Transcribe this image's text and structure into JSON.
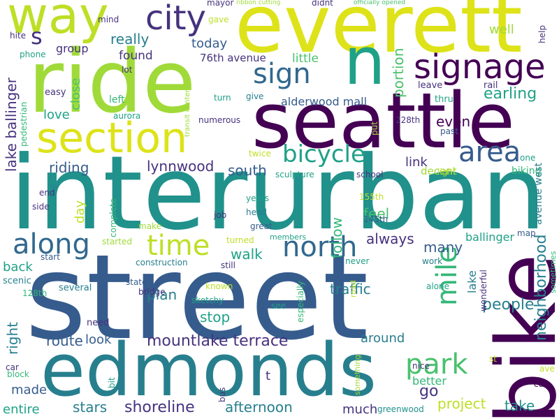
{
  "palette": {
    "dark_purple": "#440154",
    "indigo": "#46327e",
    "blue": "#365c8d",
    "steel": "#31688e",
    "teal": "#277f8e",
    "sea": "#21918c",
    "green_teal": "#1fa187",
    "green": "#35b779",
    "lime_green": "#4ac16d",
    "lime": "#a0da39",
    "yellow_green": "#bddf26",
    "yellow": "#dde318"
  },
  "words": [
    {
      "text": "street",
      "color": "#365c8d"
    },
    {
      "text": "interurban",
      "color": "#21918c"
    },
    {
      "text": "edmonds",
      "color": "#277f8e"
    },
    {
      "text": "seattle",
      "color": "#440154"
    },
    {
      "text": "ride",
      "color": "#a0da39"
    },
    {
      "text": "everett",
      "color": "#dde318"
    },
    {
      "text": "bike",
      "color": "#440154"
    },
    {
      "text": "n",
      "color": "#1fa187"
    },
    {
      "text": "way",
      "color": "#bddf26"
    },
    {
      "text": "section",
      "color": "#dde318"
    },
    {
      "text": "city",
      "color": "#46327e"
    },
    {
      "text": "signage",
      "color": "#440154"
    },
    {
      "text": "sign",
      "color": "#31688e"
    },
    {
      "text": "time",
      "color": "#bddf26"
    },
    {
      "text": "north",
      "color": "#31688e"
    },
    {
      "text": "along",
      "color": "#31688e"
    },
    {
      "text": "area",
      "color": "#365c8d"
    },
    {
      "text": "bicycle",
      "color": "#1fa187"
    },
    {
      "text": "park",
      "color": "#4ac16d"
    },
    {
      "text": "mile",
      "color": "#35b779"
    },
    {
      "text": "s",
      "color": "#46327e"
    },
    {
      "text": "mountlake terrace",
      "color": "#46327e"
    },
    {
      "text": "neighborhood",
      "color": "#277f8e"
    },
    {
      "text": "lake ballinger",
      "color": "#46327e"
    },
    {
      "text": "shoreline",
      "color": "#46327e"
    },
    {
      "text": "people",
      "color": "#277f8e"
    },
    {
      "text": "earling",
      "color": "#1fa187"
    },
    {
      "text": "portion",
      "color": "#4ac16d"
    },
    {
      "text": "lynnwood",
      "color": "#46327e"
    },
    {
      "text": "riding",
      "color": "#365c8d"
    },
    {
      "text": "south",
      "color": "#365c8d"
    },
    {
      "text": "walk",
      "color": "#1fa187"
    },
    {
      "text": "really",
      "color": "#277f8e"
    },
    {
      "text": "many",
      "color": "#365c8d"
    },
    {
      "text": "stop",
      "color": "#1fa187"
    },
    {
      "text": "plan",
      "color": "#277f8e"
    },
    {
      "text": "traffic",
      "color": "#277f8e"
    },
    {
      "text": "route",
      "color": "#365c8d"
    },
    {
      "text": "right",
      "color": "#277f8e"
    },
    {
      "text": "always",
      "color": "#46327e"
    },
    {
      "text": "follow",
      "color": "#35b779"
    },
    {
      "text": "feel",
      "color": "#4ac16d"
    },
    {
      "text": "even",
      "color": "#440154"
    },
    {
      "text": "link",
      "color": "#46327e"
    },
    {
      "text": "well",
      "color": "#a0da39"
    },
    {
      "text": "take",
      "color": "#21918c"
    },
    {
      "text": "project",
      "color": "#bddf26"
    },
    {
      "text": "stars",
      "color": "#277f8e"
    },
    {
      "text": "afternoon",
      "color": "#277f8e"
    },
    {
      "text": "go",
      "color": "#46327e"
    },
    {
      "text": "better",
      "color": "#35b779"
    },
    {
      "text": "around",
      "color": "#277f8e"
    },
    {
      "text": "much",
      "color": "#46327e"
    },
    {
      "text": "day",
      "color": "#bddf26"
    },
    {
      "text": "today",
      "color": "#365c8d"
    },
    {
      "text": "found",
      "color": "#46327e"
    },
    {
      "text": "group",
      "color": "#46327e"
    },
    {
      "text": "love",
      "color": "#1fa187"
    },
    {
      "text": "close",
      "color": "#4ac16d"
    },
    {
      "text": "little",
      "color": "#4ac16d"
    },
    {
      "text": "76th avenue",
      "color": "#46327e"
    },
    {
      "text": "alderwood mall",
      "color": "#365c8d"
    },
    {
      "text": "back",
      "color": "#1fa187"
    },
    {
      "text": "look",
      "color": "#365c8d"
    },
    {
      "text": "made",
      "color": "#365c8d"
    },
    {
      "text": "entire",
      "color": "#1fa187"
    },
    {
      "text": "ballinger",
      "color": "#1fa187"
    },
    {
      "text": "lake",
      "color": "#277f8e"
    },
    {
      "text": "decent",
      "color": "#a0da39"
    },
    {
      "text": "biking",
      "color": "#35b779"
    },
    {
      "text": "avenue west",
      "color": "#277f8e"
    },
    {
      "text": "mayor",
      "color": "#46327e"
    },
    {
      "text": "ribbon cutting",
      "color": "#a0da39"
    },
    {
      "text": "didnt",
      "color": "#46327e"
    },
    {
      "text": "officially opened",
      "color": "#4ac16d"
    },
    {
      "text": "gave",
      "color": "#bddf26"
    },
    {
      "text": "mind",
      "color": "#46327e"
    },
    {
      "text": "hite",
      "color": "#46327e"
    },
    {
      "text": "phone",
      "color": "#1fa187"
    },
    {
      "text": "lot",
      "color": "#46327e"
    },
    {
      "text": "easy",
      "color": "#46327e"
    },
    {
      "text": "left",
      "color": "#35b779"
    },
    {
      "text": "aurora",
      "color": "#1fa187"
    },
    {
      "text": "pedestrian",
      "color": "#35b779"
    },
    {
      "text": "transit center",
      "color": "#a0da39"
    },
    {
      "text": "turn",
      "color": "#1fa187"
    },
    {
      "text": "give",
      "color": "#277f8e"
    },
    {
      "text": "numerous",
      "color": "#46327e"
    },
    {
      "text": "twice",
      "color": "#bddf26"
    },
    {
      "text": "put",
      "color": "#a0da39"
    },
    {
      "text": "228th",
      "color": "#46327e"
    },
    {
      "text": "past",
      "color": "#365c8d"
    },
    {
      "text": "leave",
      "color": "#46327e"
    },
    {
      "text": "rail",
      "color": "#46327e"
    },
    {
      "text": "thru",
      "color": "#1fa187"
    },
    {
      "text": "help",
      "color": "#46327e"
    },
    {
      "text": "one",
      "color": "#1fa187"
    },
    {
      "text": "light",
      "color": "#bddf26"
    },
    {
      "text": "school",
      "color": "#46327e"
    },
    {
      "text": "sculpture",
      "color": "#1fa187"
    },
    {
      "text": "end",
      "color": "#46327e"
    },
    {
      "text": "il",
      "color": "#277f8e"
    },
    {
      "text": "side",
      "color": "#46327e"
    },
    {
      "text": "job",
      "color": "#46327e"
    },
    {
      "text": "years",
      "color": "#1fa187"
    },
    {
      "text": "head",
      "color": "#277f8e"
    },
    {
      "text": "great",
      "color": "#365c8d"
    },
    {
      "text": "members",
      "color": "#1fa187"
    },
    {
      "text": "complete",
      "color": "#35b779"
    },
    {
      "text": "make",
      "color": "#a0da39"
    },
    {
      "text": "155th",
      "color": "#bddf26"
    },
    {
      "text": "145th",
      "color": "#365c8d"
    },
    {
      "text": "started",
      "color": "#a0da39"
    },
    {
      "text": "turned",
      "color": "#bddf26"
    },
    {
      "text": "construction",
      "color": "#277f8e"
    },
    {
      "text": "start",
      "color": "#365c8d"
    },
    {
      "text": "still",
      "color": "#46327e"
    },
    {
      "text": "never",
      "color": "#1fa187"
    },
    {
      "text": "work",
      "color": "#277f8e"
    },
    {
      "text": "map",
      "color": "#365c8d"
    },
    {
      "text": "sometimes",
      "color": "#35b779"
    },
    {
      "text": "wonderful",
      "color": "#46327e"
    },
    {
      "text": "alone",
      "color": "#1fa187"
    },
    {
      "text": "scenic",
      "color": "#277f8e"
    },
    {
      "text": "several",
      "color": "#277f8e"
    },
    {
      "text": "state",
      "color": "#365c8d"
    },
    {
      "text": "known",
      "color": "#bddf26"
    },
    {
      "text": "especially",
      "color": "#35b779"
    },
    {
      "text": "road",
      "color": "#bddf26"
    },
    {
      "text": "128th",
      "color": "#35b779"
    },
    {
      "text": "bridge",
      "color": "#46327e"
    },
    {
      "text": "sketchy",
      "color": "#1fa187"
    },
    {
      "text": "see",
      "color": "#1fa187"
    },
    {
      "text": "need",
      "color": "#46327e"
    },
    {
      "text": "car",
      "color": "#46327e"
    },
    {
      "text": "block",
      "color": "#35b779"
    },
    {
      "text": "bit",
      "color": "#1fa187"
    },
    {
      "text": "bus",
      "color": "#46327e"
    },
    {
      "text": "t",
      "color": "#46327e"
    },
    {
      "text": "nice",
      "color": "#46327e"
    },
    {
      "text": "something",
      "color": "#a0da39"
    },
    {
      "text": "st",
      "color": "#bddf26"
    },
    {
      "text": "ave",
      "color": "#bddf26"
    },
    {
      "text": "cut",
      "color": "#440154"
    },
    {
      "text": "greenwood",
      "color": "#21918c"
    }
  ]
}
